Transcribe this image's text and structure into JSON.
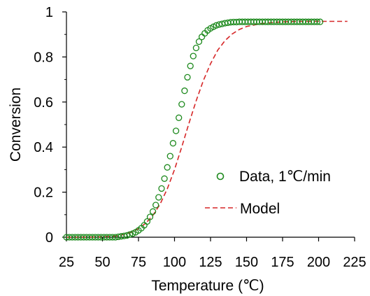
{
  "chart_data": {
    "type": "scatter",
    "xlabel": "Temperature (℃)",
    "ylabel": "Conversion",
    "xlim": [
      25,
      225
    ],
    "ylim": [
      0,
      1
    ],
    "x_ticks": [
      "25",
      "50",
      "75",
      "100",
      "125",
      "150",
      "175",
      "200",
      "225"
    ],
    "y_ticks": [
      "0",
      "0.2",
      "0.4",
      "0.6",
      "0.8",
      "1"
    ],
    "grid": false,
    "legend_position": "right",
    "series": [
      {
        "name": "Data, 1℃/min",
        "type": "scatter",
        "marker": "open-circle",
        "color": "#1e8a1e",
        "x": [
          25,
          27,
          29,
          31,
          33,
          35,
          37,
          39,
          41,
          43,
          45,
          47,
          49,
          51,
          53,
          55,
          57,
          59,
          61,
          63,
          65,
          67,
          69,
          71,
          73,
          75,
          77,
          79,
          81,
          83,
          85,
          87,
          89,
          91,
          93,
          95,
          97,
          99,
          101,
          103,
          105,
          107,
          109,
          111,
          113,
          115,
          117,
          119,
          121,
          123,
          125,
          127,
          129,
          131,
          133,
          135,
          137,
          139,
          141,
          143,
          145,
          147,
          149,
          151,
          153,
          155,
          157,
          159,
          161,
          163,
          165,
          167,
          169,
          171,
          173,
          175,
          177,
          179,
          181,
          183,
          185,
          187,
          189,
          191,
          193,
          195,
          197,
          199,
          201
        ],
        "y": [
          0,
          0,
          0,
          0,
          0,
          0,
          0,
          0,
          0,
          0,
          0,
          0,
          0,
          0,
          0,
          0,
          0,
          0,
          0.002,
          0.004,
          0.006,
          0.008,
          0.012,
          0.016,
          0.022,
          0.03,
          0.04,
          0.053,
          0.07,
          0.09,
          0.114,
          0.143,
          0.177,
          0.216,
          0.26,
          0.31,
          0.36,
          0.417,
          0.472,
          0.53,
          0.59,
          0.65,
          0.71,
          0.76,
          0.804,
          0.84,
          0.868,
          0.889,
          0.905,
          0.918,
          0.927,
          0.934,
          0.94,
          0.944,
          0.947,
          0.95,
          0.952,
          0.954,
          0.955,
          0.955,
          0.956,
          0.956,
          0.956,
          0.956,
          0.956,
          0.956,
          0.956,
          0.956,
          0.956,
          0.956,
          0.956,
          0.956,
          0.956,
          0.956,
          0.956,
          0.956,
          0.956,
          0.956,
          0.956,
          0.956,
          0.956,
          0.956,
          0.956,
          0.956,
          0.956,
          0.956,
          0.956,
          0.956,
          0.956
        ]
      },
      {
        "name": "Model",
        "type": "line",
        "style": "dashed",
        "color": "#d62728",
        "x": [
          25,
          35,
          45,
          55,
          60,
          65,
          70,
          75,
          80,
          85,
          90,
          95,
          100,
          105,
          110,
          115,
          120,
          125,
          130,
          135,
          140,
          145,
          150,
          160,
          170,
          180,
          190,
          200,
          210,
          220
        ],
        "y": [
          0,
          0,
          0.001,
          0.003,
          0.006,
          0.012,
          0.022,
          0.038,
          0.062,
          0.097,
          0.147,
          0.215,
          0.3,
          0.4,
          0.505,
          0.605,
          0.695,
          0.77,
          0.83,
          0.872,
          0.902,
          0.922,
          0.935,
          0.948,
          0.954,
          0.957,
          0.958,
          0.958,
          0.958,
          0.958
        ]
      }
    ]
  }
}
